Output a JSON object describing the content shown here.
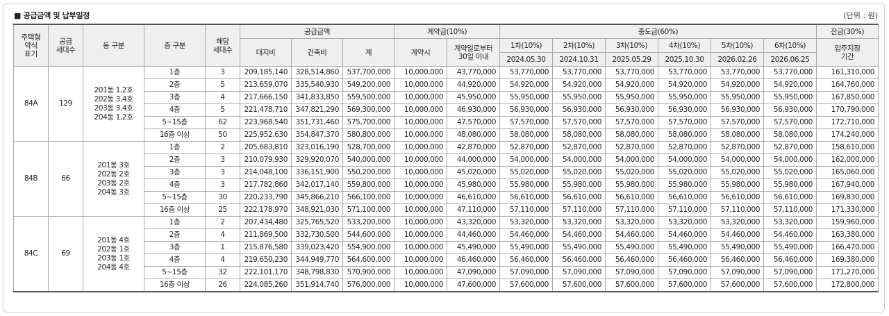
{
  "header": {
    "title": "■ 공급금액 및 납부일정",
    "unit": "(단위 : 원)"
  },
  "columns": {
    "type": [
      "주택형",
      "약식",
      "표기"
    ],
    "supply_units": [
      "공급",
      "세대수"
    ],
    "dong": "동 구분",
    "floor": "층 구분",
    "units": [
      "해당",
      "세대수"
    ],
    "supply_price": "공급금액",
    "land": "대지비",
    "building": "건축비",
    "total": "계",
    "deposit": "계약금(10%)",
    "deposit_at_contract": "계약시",
    "deposit_30days": [
      "계약일로부터",
      "30일 이내"
    ],
    "middle": "중도금(60%)",
    "installments": [
      {
        "label": "1차(10%)",
        "date": "2024.05.30"
      },
      {
        "label": "2차(10%)",
        "date": "2024.10.31"
      },
      {
        "label": "3차(10%)",
        "date": "2025.05.29"
      },
      {
        "label": "4차(10%)",
        "date": "2025.10.30"
      },
      {
        "label": "5차(10%)",
        "date": "2026.02.26"
      },
      {
        "label": "6차(10%)",
        "date": "2026.06.25"
      }
    ],
    "balance": "잔금(30%)",
    "balance_period": [
      "입주지정",
      "기간"
    ]
  },
  "groups": [
    {
      "type": "84A",
      "supply": "129",
      "dongs": [
        "201동 1,2호",
        "202동 3,4호",
        "203동 3,4호",
        "204동 1,2호"
      ],
      "rows": [
        {
          "floor": "1층",
          "units": "3",
          "land": "209,185,140",
          "building": "328,514,860",
          "total": "537,700,000",
          "c1": "10,000,000",
          "c2": "43,770,000",
          "mid": "53,770,000",
          "bal": "161,310,000"
        },
        {
          "floor": "2층",
          "units": "5",
          "land": "213,659,070",
          "building": "335,540,930",
          "total": "549,200,000",
          "c1": "10,000,000",
          "c2": "44,920,000",
          "mid": "54,920,000",
          "bal": "164,760,000"
        },
        {
          "floor": "3층",
          "units": "4",
          "land": "217,666,150",
          "building": "341,833,850",
          "total": "559,500,000",
          "c1": "10,000,000",
          "c2": "45,950,000",
          "mid": "55,950,000",
          "bal": "167,850,000"
        },
        {
          "floor": "4층",
          "units": "5",
          "land": "221,478,710",
          "building": "347,821,290",
          "total": "569,300,000",
          "c1": "10,000,000",
          "c2": "46,930,000",
          "mid": "56,930,000",
          "bal": "170,790,000"
        },
        {
          "floor": "5~15층",
          "units": "62",
          "land": "223,968,540",
          "building": "351,731,460",
          "total": "575,700,000",
          "c1": "10,000,000",
          "c2": "47,570,000",
          "mid": "57,570,000",
          "bal": "172,710,000"
        },
        {
          "floor": "16층 이상",
          "units": "50",
          "land": "225,952,630",
          "building": "354,847,370",
          "total": "580,800,000",
          "c1": "10,000,000",
          "c2": "48,080,000",
          "mid": "58,080,000",
          "bal": "174,240,000"
        }
      ]
    },
    {
      "type": "84B",
      "supply": "66",
      "dongs": [
        "201동 3호",
        "202동 2호",
        "203동 2호",
        "204동 3호"
      ],
      "rows": [
        {
          "floor": "1층",
          "units": "2",
          "land": "205,683,810",
          "building": "323,016,190",
          "total": "528,700,000",
          "c1": "10,000,000",
          "c2": "42,870,000",
          "mid": "52,870,000",
          "bal": "158,610,000"
        },
        {
          "floor": "2층",
          "units": "3",
          "land": "210,079,930",
          "building": "329,920,070",
          "total": "540,000,000",
          "c1": "10,000,000",
          "c2": "44,000,000",
          "mid": "54,000,000",
          "bal": "162,000,000"
        },
        {
          "floor": "3층",
          "units": "3",
          "land": "214,048,100",
          "building": "336,151,900",
          "total": "550,200,000",
          "c1": "10,000,000",
          "c2": "45,020,000",
          "mid": "55,020,000",
          "bal": "165,060,000"
        },
        {
          "floor": "4층",
          "units": "3",
          "land": "217,782,860",
          "building": "342,017,140",
          "total": "559,800,000",
          "c1": "10,000,000",
          "c2": "45,980,000",
          "mid": "55,980,000",
          "bal": "167,940,000"
        },
        {
          "floor": "5~15층",
          "units": "30",
          "land": "220,233,790",
          "building": "345,866,210",
          "total": "566,100,000",
          "c1": "10,000,000",
          "c2": "46,610,000",
          "mid": "56,610,000",
          "bal": "169,830,000"
        },
        {
          "floor": "16층 이상",
          "units": "25",
          "land": "222,178,970",
          "building": "348,921,030",
          "total": "571,100,000",
          "c1": "10,000,000",
          "c2": "47,110,000",
          "mid": "57,110,000",
          "bal": "171,330,000"
        }
      ]
    },
    {
      "type": "84C",
      "supply": "69",
      "dongs": [
        "201동 4호",
        "202동 1호",
        "203동 1호",
        "204동 4호"
      ],
      "rows": [
        {
          "floor": "1층",
          "units": "2",
          "land": "207,434,480",
          "building": "325,765,520",
          "total": "533,200,000",
          "c1": "10,000,000",
          "c2": "43,320,000",
          "mid": "53,320,000",
          "bal": "159,960,000"
        },
        {
          "floor": "2층",
          "units": "4",
          "land": "211,869,500",
          "building": "332,730,500",
          "total": "544,600,000",
          "c1": "10,000,000",
          "c2": "44,460,000",
          "mid": "54,460,000",
          "bal": "163,380,000"
        },
        {
          "floor": "3층",
          "units": "1",
          "land": "215,876,580",
          "building": "339,023,420",
          "total": "554,900,000",
          "c1": "10,000,000",
          "c2": "45,490,000",
          "mid": "55,490,000",
          "bal": "166,470,000"
        },
        {
          "floor": "4층",
          "units": "4",
          "land": "219,650,230",
          "building": "344,949,770",
          "total": "564,600,000",
          "c1": "10,000,000",
          "c2": "46,460,000",
          "mid": "56,460,000",
          "bal": "169,380,000"
        },
        {
          "floor": "5~15층",
          "units": "32",
          "land": "222,101,170",
          "building": "348,798,830",
          "total": "570,900,000",
          "c1": "10,000,000",
          "c2": "47,090,000",
          "mid": "57,090,000",
          "bal": "171,270,000"
        },
        {
          "floor": "16층 이상",
          "units": "26",
          "land": "224,085,260",
          "building": "351,914,740",
          "total": "576,000,000",
          "c1": "10,000,000",
          "c2": "47,600,000",
          "mid": "57,600,000",
          "bal": "172,800,000"
        }
      ]
    }
  ]
}
